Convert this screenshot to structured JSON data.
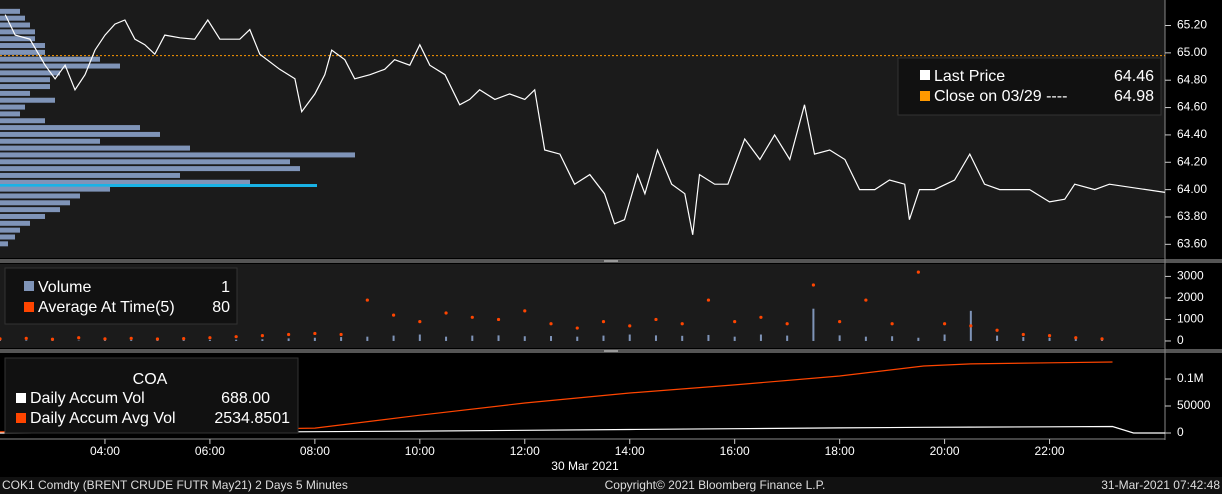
{
  "chart_data": [
    {
      "type": "line",
      "xlim": [
        2,
        24.2
      ],
      "ylim": [
        63.5,
        65.35
      ],
      "yticks": [
        {
          "value": 63.6,
          "label": "63.60"
        },
        {
          "value": 63.8,
          "label": "63.80"
        },
        {
          "value": 64.0,
          "label": "64.00"
        },
        {
          "value": 64.2,
          "label": "64.20"
        },
        {
          "value": 64.4,
          "label": "64.40"
        },
        {
          "value": 64.6,
          "label": "64.60"
        },
        {
          "value": 64.8,
          "label": "64.80"
        },
        {
          "value": 65.0,
          "label": "65.00"
        },
        {
          "value": 65.2,
          "label": "65.20"
        }
      ],
      "x": [
        2.1,
        2.29,
        2.57,
        2.86,
        3.05,
        3.24,
        3.43,
        3.62,
        3.81,
        4.0,
        4.19,
        4.38,
        4.57,
        4.76,
        4.95,
        5.14,
        5.43,
        5.71,
        5.96,
        6.19,
        6.57,
        6.76,
        6.95,
        7.33,
        7.62,
        7.75,
        8.0,
        8.19,
        8.32,
        8.57,
        8.76,
        9.05,
        9.33,
        9.52,
        9.81,
        10.0,
        10.19,
        10.48,
        10.76,
        10.95,
        11.14,
        11.43,
        11.71,
        12.0,
        12.19,
        12.38,
        12.67,
        12.95,
        13.24,
        13.52,
        13.71,
        13.9,
        14.15,
        14.29,
        14.53,
        14.8,
        15.05,
        15.2,
        15.33,
        15.62,
        15.87,
        16.19,
        16.48,
        16.76,
        17.05,
        17.33,
        17.52,
        17.81,
        18.1,
        18.38,
        18.67,
        18.95,
        19.24,
        19.33,
        19.52,
        19.81,
        20.19,
        20.48,
        20.76,
        21.05,
        21.62,
        22.0,
        22.29,
        22.48,
        22.86,
        23.14,
        24.2
      ],
      "series": [
        {
          "name": "Last Price",
          "color": "#ffffff",
          "readout": 64.46,
          "values": [
            65.28,
            65.13,
            65.1,
            64.91,
            64.81,
            64.91,
            64.73,
            64.84,
            65.02,
            65.13,
            65.21,
            65.24,
            65.1,
            65.06,
            64.99,
            65.13,
            65.11,
            65.1,
            65.24,
            65.1,
            65.1,
            65.17,
            64.99,
            64.88,
            64.81,
            64.57,
            64.7,
            64.84,
            65.02,
            64.95,
            64.81,
            64.84,
            64.88,
            64.95,
            64.91,
            65.06,
            64.91,
            64.84,
            64.62,
            64.66,
            64.73,
            64.66,
            64.7,
            64.66,
            64.73,
            64.29,
            64.26,
            64.04,
            64.11,
            63.97,
            63.75,
            63.78,
            64.11,
            63.97,
            64.29,
            64.04,
            63.97,
            63.67,
            64.11,
            64.04,
            64.04,
            64.37,
            64.22,
            64.4,
            64.22,
            64.62,
            64.26,
            64.29,
            64.22,
            64.0,
            64.0,
            64.07,
            64.04,
            63.78,
            64.0,
            64.0,
            64.07,
            64.26,
            64.04,
            64.0,
            64.0,
            63.91,
            63.93,
            64.04,
            64.0,
            64.04,
            63.98
          ]
        }
      ],
      "reference": {
        "name": "Close on 03/29 ----",
        "value": 64.98,
        "color": "#ff9900"
      },
      "profile": {
        "color": "#7f94b8",
        "highlight_color": "#19b3e6",
        "prices": [
          65.3,
          65.25,
          65.2,
          65.15,
          65.1,
          65.05,
          65.0,
          64.95,
          64.9,
          64.85,
          64.8,
          64.75,
          64.7,
          64.65,
          64.6,
          64.55,
          64.5,
          64.45,
          64.4,
          64.35,
          64.3,
          64.25,
          64.2,
          64.15,
          64.1,
          64.05,
          64.03,
          64.0,
          63.95,
          63.9,
          63.85,
          63.8,
          63.75,
          63.7,
          63.65,
          63.6
        ],
        "values": [
          20,
          25,
          30,
          35,
          35,
          45,
          45,
          100,
          120,
          60,
          50,
          50,
          30,
          55,
          25,
          20,
          45,
          140,
          160,
          100,
          190,
          355,
          290,
          300,
          180,
          250,
          317,
          110,
          80,
          70,
          60,
          45,
          30,
          20,
          15,
          8
        ],
        "highlight_index": 26
      }
    },
    {
      "type": "bar",
      "xlim": [
        2,
        24.2
      ],
      "ylim": [
        -280,
        3530
      ],
      "yticks": [
        0,
        1000,
        2000,
        3000
      ],
      "x": [
        2.0,
        2.5,
        3.0,
        3.5,
        4.0,
        4.5,
        5.0,
        5.5,
        6.0,
        6.5,
        7.0,
        7.5,
        8.0,
        8.5,
        9.0,
        9.5,
        10.0,
        10.5,
        11.0,
        11.5,
        12.0,
        12.5,
        13.0,
        13.5,
        14.0,
        14.5,
        15.0,
        15.5,
        16.0,
        16.5,
        17.0,
        17.5,
        18.0,
        18.5,
        19.0,
        19.5,
        20.0,
        20.5,
        21.0,
        21.5,
        22.0,
        22.5,
        23.0
      ],
      "series": [
        {
          "name": "Volume",
          "color": "#7f94b8",
          "style": "bar",
          "readout": 1,
          "values": [
            40,
            30,
            30,
            20,
            30,
            40,
            30,
            40,
            50,
            60,
            80,
            120,
            150,
            180,
            200,
            250,
            300,
            200,
            250,
            260,
            220,
            230,
            200,
            250,
            300,
            260,
            240,
            280,
            200,
            300,
            250,
            1500,
            260,
            200,
            220,
            150,
            300,
            1400,
            250,
            180,
            150,
            100,
            80
          ]
        },
        {
          "name": "Average At Time(5)",
          "color": "#ff4500",
          "style": "dot",
          "readout": 80,
          "values": [
            100,
            120,
            80,
            150,
            100,
            120,
            90,
            110,
            150,
            200,
            250,
            300,
            350,
            300,
            1900,
            1200,
            900,
            1300,
            1100,
            1000,
            1400,
            800,
            600,
            900,
            700,
            1000,
            800,
            1900,
            900,
            1100,
            800,
            2600,
            900,
            1900,
            800,
            3200,
            800,
            700,
            500,
            300,
            250,
            150,
            100
          ]
        }
      ]
    },
    {
      "type": "line",
      "title": "COA",
      "xlim": [
        2,
        24.2
      ],
      "ylim": [
        -40700,
        144400
      ],
      "yticks": [
        0,
        50000,
        {
          "value": 100000,
          "label": "0.1M"
        }
      ],
      "xticks": [
        {
          "value": 4,
          "label": "04:00"
        },
        {
          "value": 6,
          "label": "06:00"
        },
        {
          "value": 8,
          "label": "08:00"
        },
        {
          "value": 10,
          "label": "10:00"
        },
        {
          "value": 12,
          "label": "12:00"
        },
        {
          "value": 14,
          "label": "14:00"
        },
        {
          "value": 16,
          "label": "16:00"
        },
        {
          "value": 18,
          "label": "18:00"
        },
        {
          "value": 20,
          "label": "20:00"
        },
        {
          "value": 22,
          "label": "22:00"
        }
      ],
      "xlabel": "30 Mar 2021",
      "x": [
        2,
        4,
        6,
        8,
        10,
        12,
        14,
        16,
        18,
        19.6,
        20.5,
        22,
        23.2,
        23.6,
        24.2
      ],
      "series": [
        {
          "name": "Daily Accum Vol",
          "color": "#ffffff",
          "readout": "688.00",
          "values": [
            0,
            500,
            1500,
            2500,
            3500,
            5000,
            6500,
            8000,
            9500,
            10500,
            11000,
            11500,
            12000,
            0,
            0
          ]
        },
        {
          "name": "Daily Accum Avg Vol",
          "color": "#ff4500",
          "readout": 2534.8501,
          "values": [
            2000,
            4000,
            6000,
            9000,
            33000,
            55500,
            74000,
            89000,
            105600,
            124000,
            128000,
            130000,
            131500,
            null,
            null
          ]
        }
      ]
    }
  ],
  "footer": {
    "left": "COK1 Comdty (BRENT CRUDE FUTR  May21) 2 Days 5 Minutes",
    "center": "Copyright© 2021 Bloomberg Finance L.P.",
    "right": "31-Mar-2021 07:42:48"
  }
}
